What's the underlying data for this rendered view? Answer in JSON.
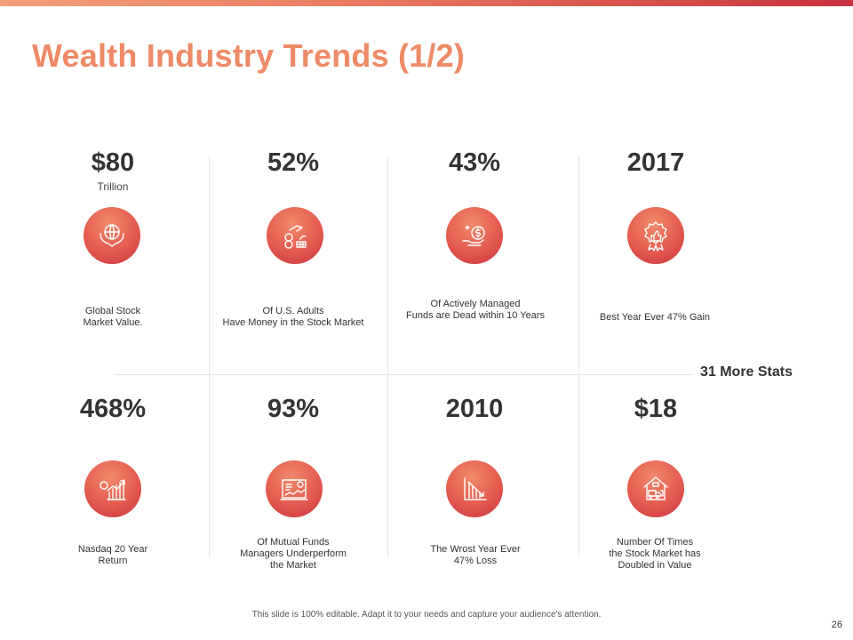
{
  "slide": {
    "title": "Wealth Industry Trends (1/2)",
    "more_stats": "31 More Stats",
    "footer": "This slide is 100% editable. Adapt it to your needs and capture your audience's attention.",
    "page_number": "26"
  },
  "colors": {
    "accent": "#ee8a67",
    "gradient_start": "#f08a6b",
    "gradient_end": "#c8313e",
    "text": "#333333"
  },
  "stats": [
    {
      "value": "$80",
      "unit": "Trillion",
      "description": "Global Stock\nMarket Value.",
      "icon": "globe-in-hands-icon"
    },
    {
      "value": "52%",
      "unit": "",
      "description": "Of U.S. Adults\nHave Money in the Stock Market",
      "icon": "money-hand-coins-icon"
    },
    {
      "value": "43%",
      "unit": "",
      "description": "Of Actively Managed\nFunds are Dead within 10 Years",
      "icon": "dollar-coin-hand-icon"
    },
    {
      "value": "2017",
      "unit": "",
      "description": "Best Year Ever 47% Gain",
      "icon": "thumbs-up-badge-icon"
    },
    {
      "value": "468%",
      "unit": "",
      "description": "Nasdaq 20 Year\nReturn",
      "icon": "growth-chart-coins-icon"
    },
    {
      "value": "93%",
      "unit": "",
      "description": "Of Mutual Funds\nManagers Underperform\nthe Market",
      "icon": "analytics-report-icon"
    },
    {
      "value": "2010",
      "unit": "",
      "description": "The Wrost Year Ever\n47% Loss",
      "icon": "declining-chart-icon"
    },
    {
      "value": "$18",
      "unit": "",
      "description": "Number Of Times\nthe Stock Market has\nDoubled in Value",
      "icon": "house-truck-icon"
    }
  ]
}
